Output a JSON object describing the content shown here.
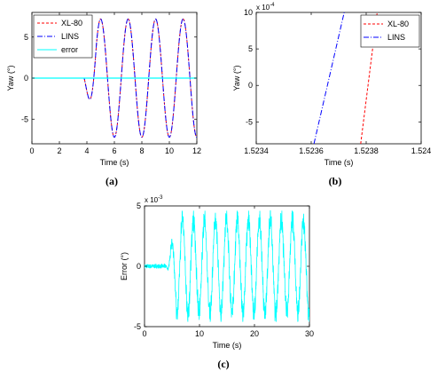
{
  "chart_data": [
    {
      "panel": "(a)",
      "type": "line",
      "caption": "(a)",
      "xlabel": "Time (s)",
      "ylabel": "Yaw (°)",
      "xlim": [
        0,
        12
      ],
      "ylim": [
        -8,
        8
      ],
      "xticks": [
        0,
        2,
        4,
        6,
        8,
        10,
        12
      ],
      "yticks": [
        -5,
        0,
        5
      ],
      "grid": false,
      "legend_position": "top-left",
      "series": [
        {
          "name": "XL-80",
          "style": "dashed",
          "color": "#ff0000",
          "description_values": {
            "amplitude": 7.2,
            "period": 2.0,
            "start_time": 3.8,
            "peak_times": [
              5.0,
              7.0,
              9.0,
              11.0
            ],
            "trough_times": [
              6.0,
              8.0,
              10.0,
              12.0
            ]
          }
        },
        {
          "name": "LINS",
          "style": "dashdot",
          "color": "#0000ff",
          "description_values": {
            "amplitude": 7.2,
            "period": 2.0,
            "start_time": 3.8
          }
        },
        {
          "name": "error",
          "style": "solid",
          "color": "#00ffff",
          "description_values": {
            "value": 0
          }
        }
      ]
    },
    {
      "panel": "(b)",
      "type": "line",
      "caption": "(b)",
      "xlabel": "Time (s)",
      "ylabel": "Yaw (°)",
      "xlim": [
        1.5234,
        1.524
      ],
      "ylim": [
        -8,
        10
      ],
      "y_exponent": "x 10",
      "y_exponent_power": "-4",
      "xticks": [
        "1.5234",
        "1.5236",
        "1.5238",
        "1.524"
      ],
      "yticks": [
        -5,
        0,
        5,
        10
      ],
      "grid": false,
      "legend_position": "top-right",
      "series": [
        {
          "name": "XL-80",
          "style": "dashed",
          "color": "#ff0000",
          "x": [
            1.52378,
            1.52384
          ],
          "y": [
            -8,
            10
          ]
        },
        {
          "name": "LINS",
          "style": "dashdot",
          "color": "#0000ff",
          "x": [
            1.52361,
            1.52372
          ],
          "y": [
            -8,
            10
          ]
        }
      ]
    },
    {
      "panel": "(c)",
      "type": "line",
      "caption": "(c)",
      "xlabel": "Time (s)",
      "ylabel": "Error (°)",
      "xlim": [
        0,
        30
      ],
      "ylim": [
        -5,
        5
      ],
      "y_exponent": "x 10",
      "y_exponent_power": "-3",
      "xticks": [
        0,
        10,
        20,
        30
      ],
      "yticks": [
        -5,
        0,
        5
      ],
      "grid": false,
      "series": [
        {
          "name": "error",
          "style": "solid",
          "color": "#00ffff",
          "description_values": {
            "start_time": 4.0,
            "amplitude_approx": 4.3,
            "period": 2.0,
            "noise_level": 0.15
          }
        }
      ]
    }
  ]
}
